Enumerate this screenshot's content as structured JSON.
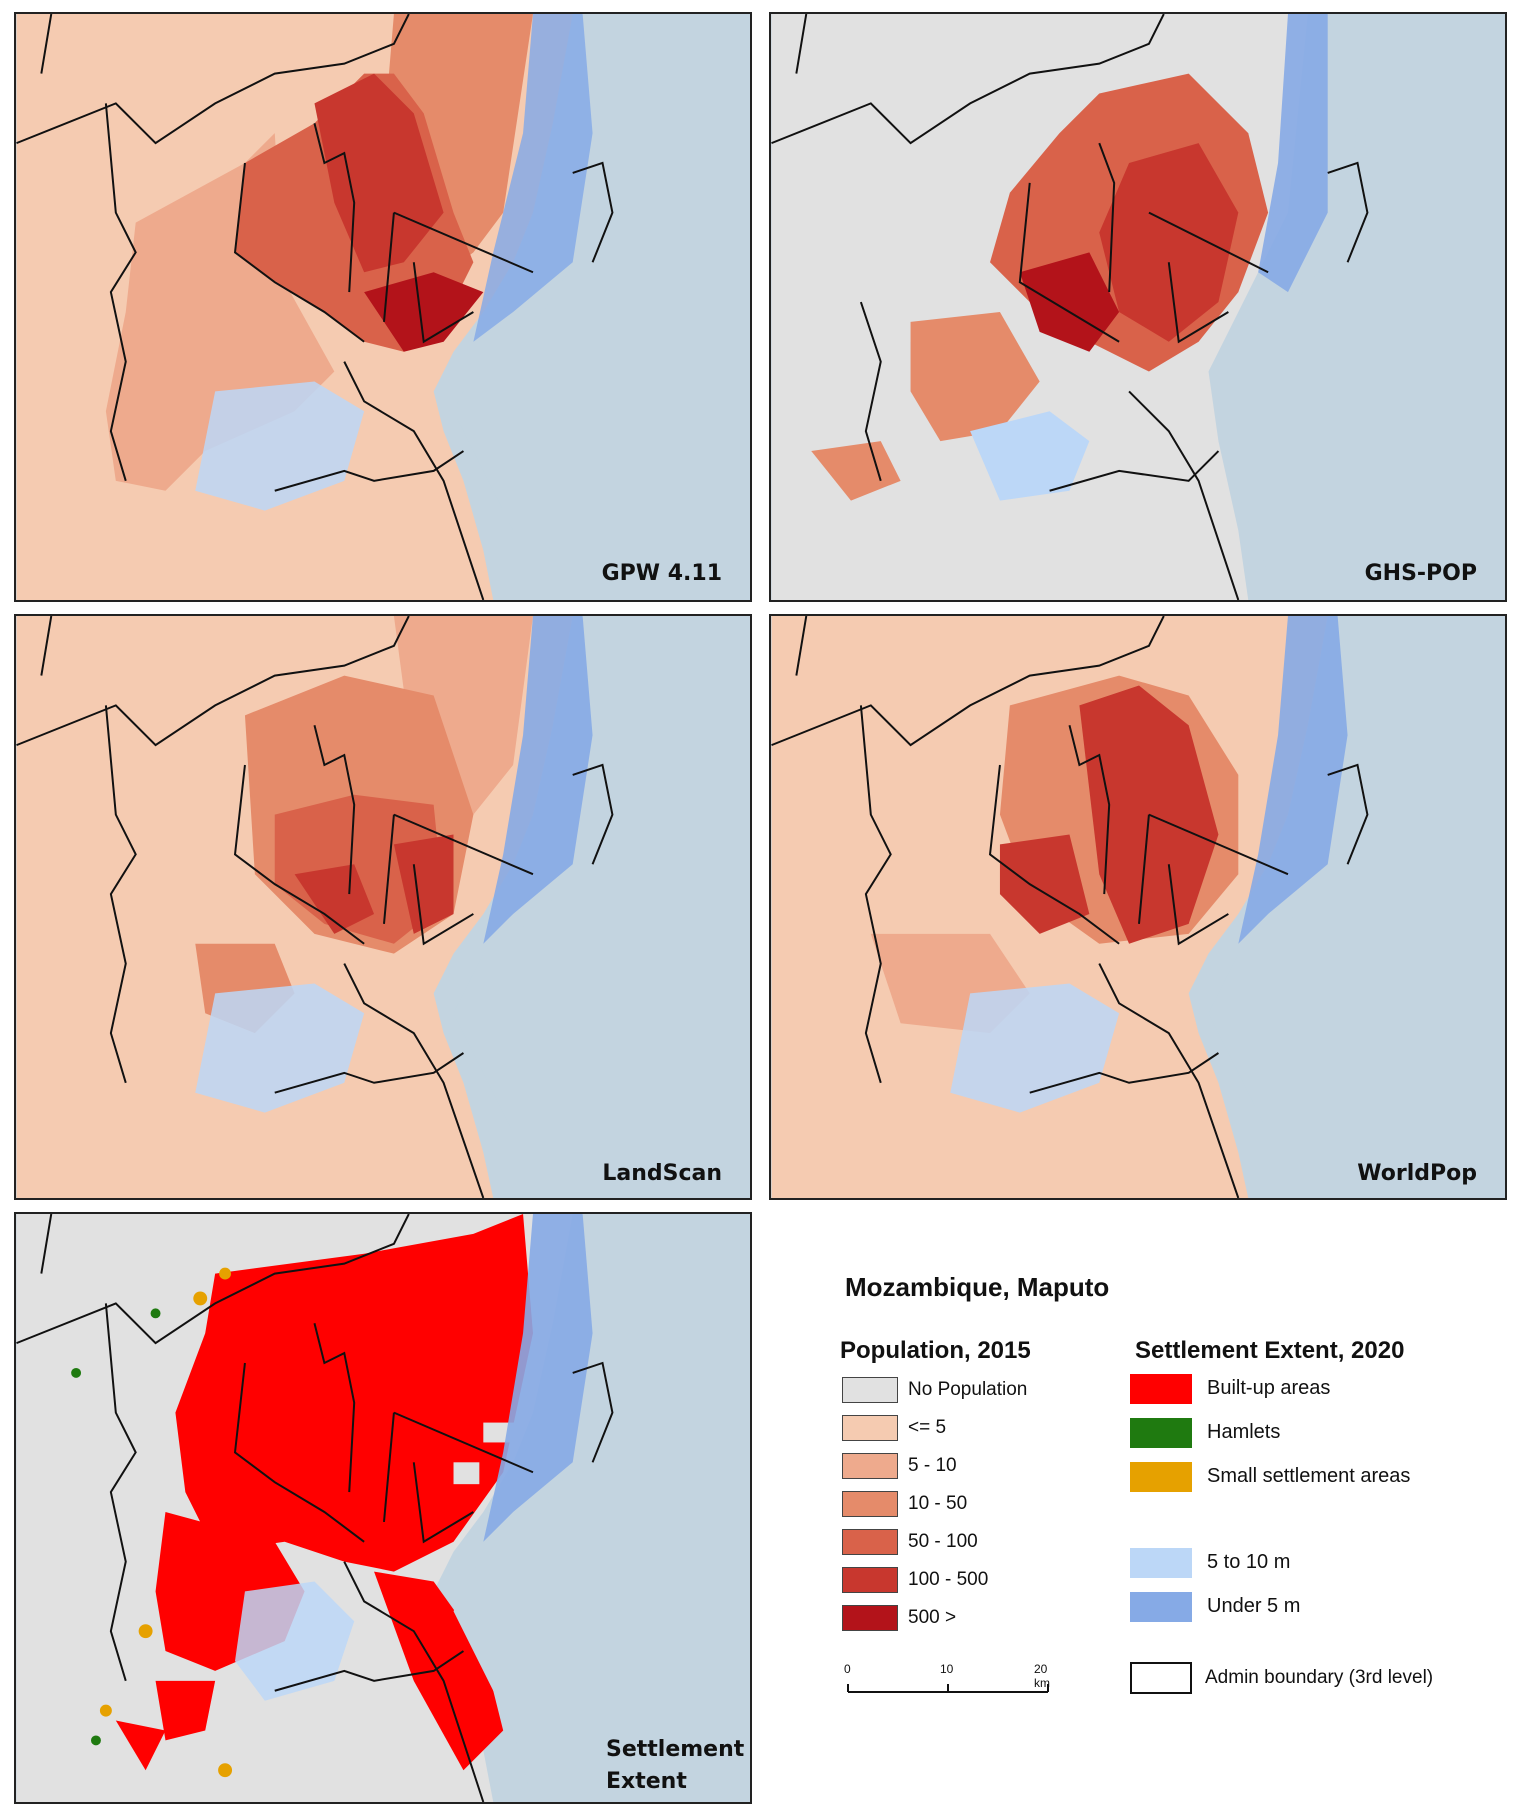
{
  "panels": [
    {
      "id": "gpw",
      "label": "GPW 4.11"
    },
    {
      "id": "ghs",
      "label": "GHS-POP"
    },
    {
      "id": "landscan",
      "label": "LandScan"
    },
    {
      "id": "worldpop",
      "label": "WorldPop"
    },
    {
      "id": "settlement",
      "label_line1": "Settlement",
      "label_line2": "Extent"
    }
  ],
  "legend": {
    "title": "Mozambique, Maputo",
    "population": {
      "heading": "Population, 2015",
      "classes": [
        {
          "label": "No Population",
          "color": "#e1e1e1"
        },
        {
          "label": "<= 5",
          "color": "#f5cbb1"
        },
        {
          "label": "5 - 10",
          "color": "#eeaa8d"
        },
        {
          "label": "10 - 50",
          "color": "#e58b6a"
        },
        {
          "label": "50 - 100",
          "color": "#d9624a"
        },
        {
          "label": "100 - 500",
          "color": "#c8372e"
        },
        {
          "label": "500 >",
          "color": "#b3131a"
        }
      ]
    },
    "settlement": {
      "heading": "Settlement Extent, 2020",
      "classes": [
        {
          "label": "Built-up areas",
          "color": "#ff0000"
        },
        {
          "label": "Hamlets",
          "color": "#1f7a10"
        },
        {
          "label": "Small settlement areas",
          "color": "#e6a100"
        }
      ]
    },
    "elevation": [
      {
        "label": "5 to 10 m",
        "color": "#bcd7f7"
      },
      {
        "label": "Under 5 m",
        "color": "#86aae6"
      }
    ],
    "boundary": {
      "label": "Admin boundary (3rd level)"
    },
    "scalebar": {
      "ticks": [
        "0",
        "10",
        "20 km"
      ]
    }
  },
  "colors": {
    "sea": "#c3d4e0",
    "coast_low": "#86aae6",
    "boundary": "#111111"
  }
}
